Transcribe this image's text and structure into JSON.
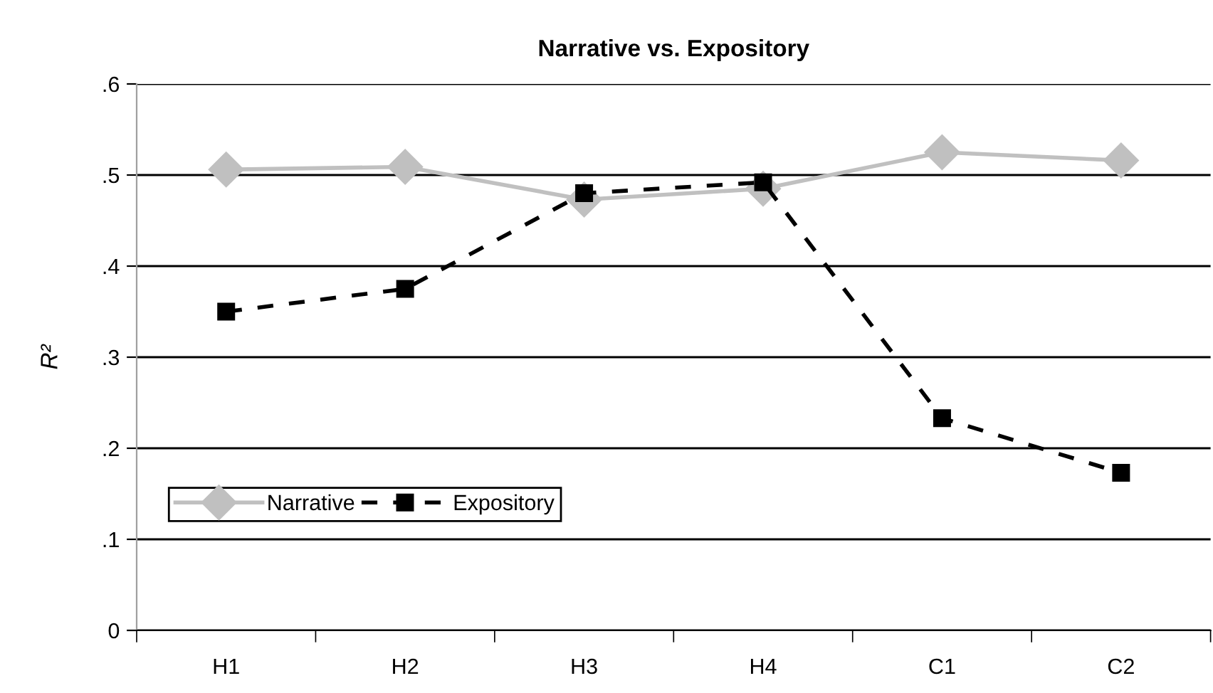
{
  "chart_data": {
    "type": "line",
    "title": "Narrative vs. Expository",
    "ylabel": "R²",
    "categories": [
      "H1",
      "H2",
      "H3",
      "H4",
      "C1",
      "C2"
    ],
    "series": [
      {
        "name": "Narrative",
        "color": "#c0c0c0",
        "marker": "diamond",
        "line_style": "solid",
        "values": [
          0.506,
          0.509,
          0.473,
          0.485,
          0.525,
          0.516
        ]
      },
      {
        "name": "Expository",
        "color": "#000000",
        "marker": "square",
        "line_style": "dashed",
        "values": [
          0.35,
          0.375,
          0.48,
          0.492,
          0.233,
          0.173
        ]
      }
    ],
    "ylim": [
      0,
      0.6
    ],
    "yticks": [
      {
        "value": 0,
        "label": "0"
      },
      {
        "value": 0.1,
        "label": ".1"
      },
      {
        "value": 0.2,
        "label": ".2"
      },
      {
        "value": 0.3,
        "label": ".3"
      },
      {
        "value": 0.4,
        "label": ".4"
      },
      {
        "value": 0.5,
        "label": ".5"
      },
      {
        "value": 0.6,
        "label": ".6"
      }
    ],
    "grid": "y",
    "legend": "bottom left"
  }
}
